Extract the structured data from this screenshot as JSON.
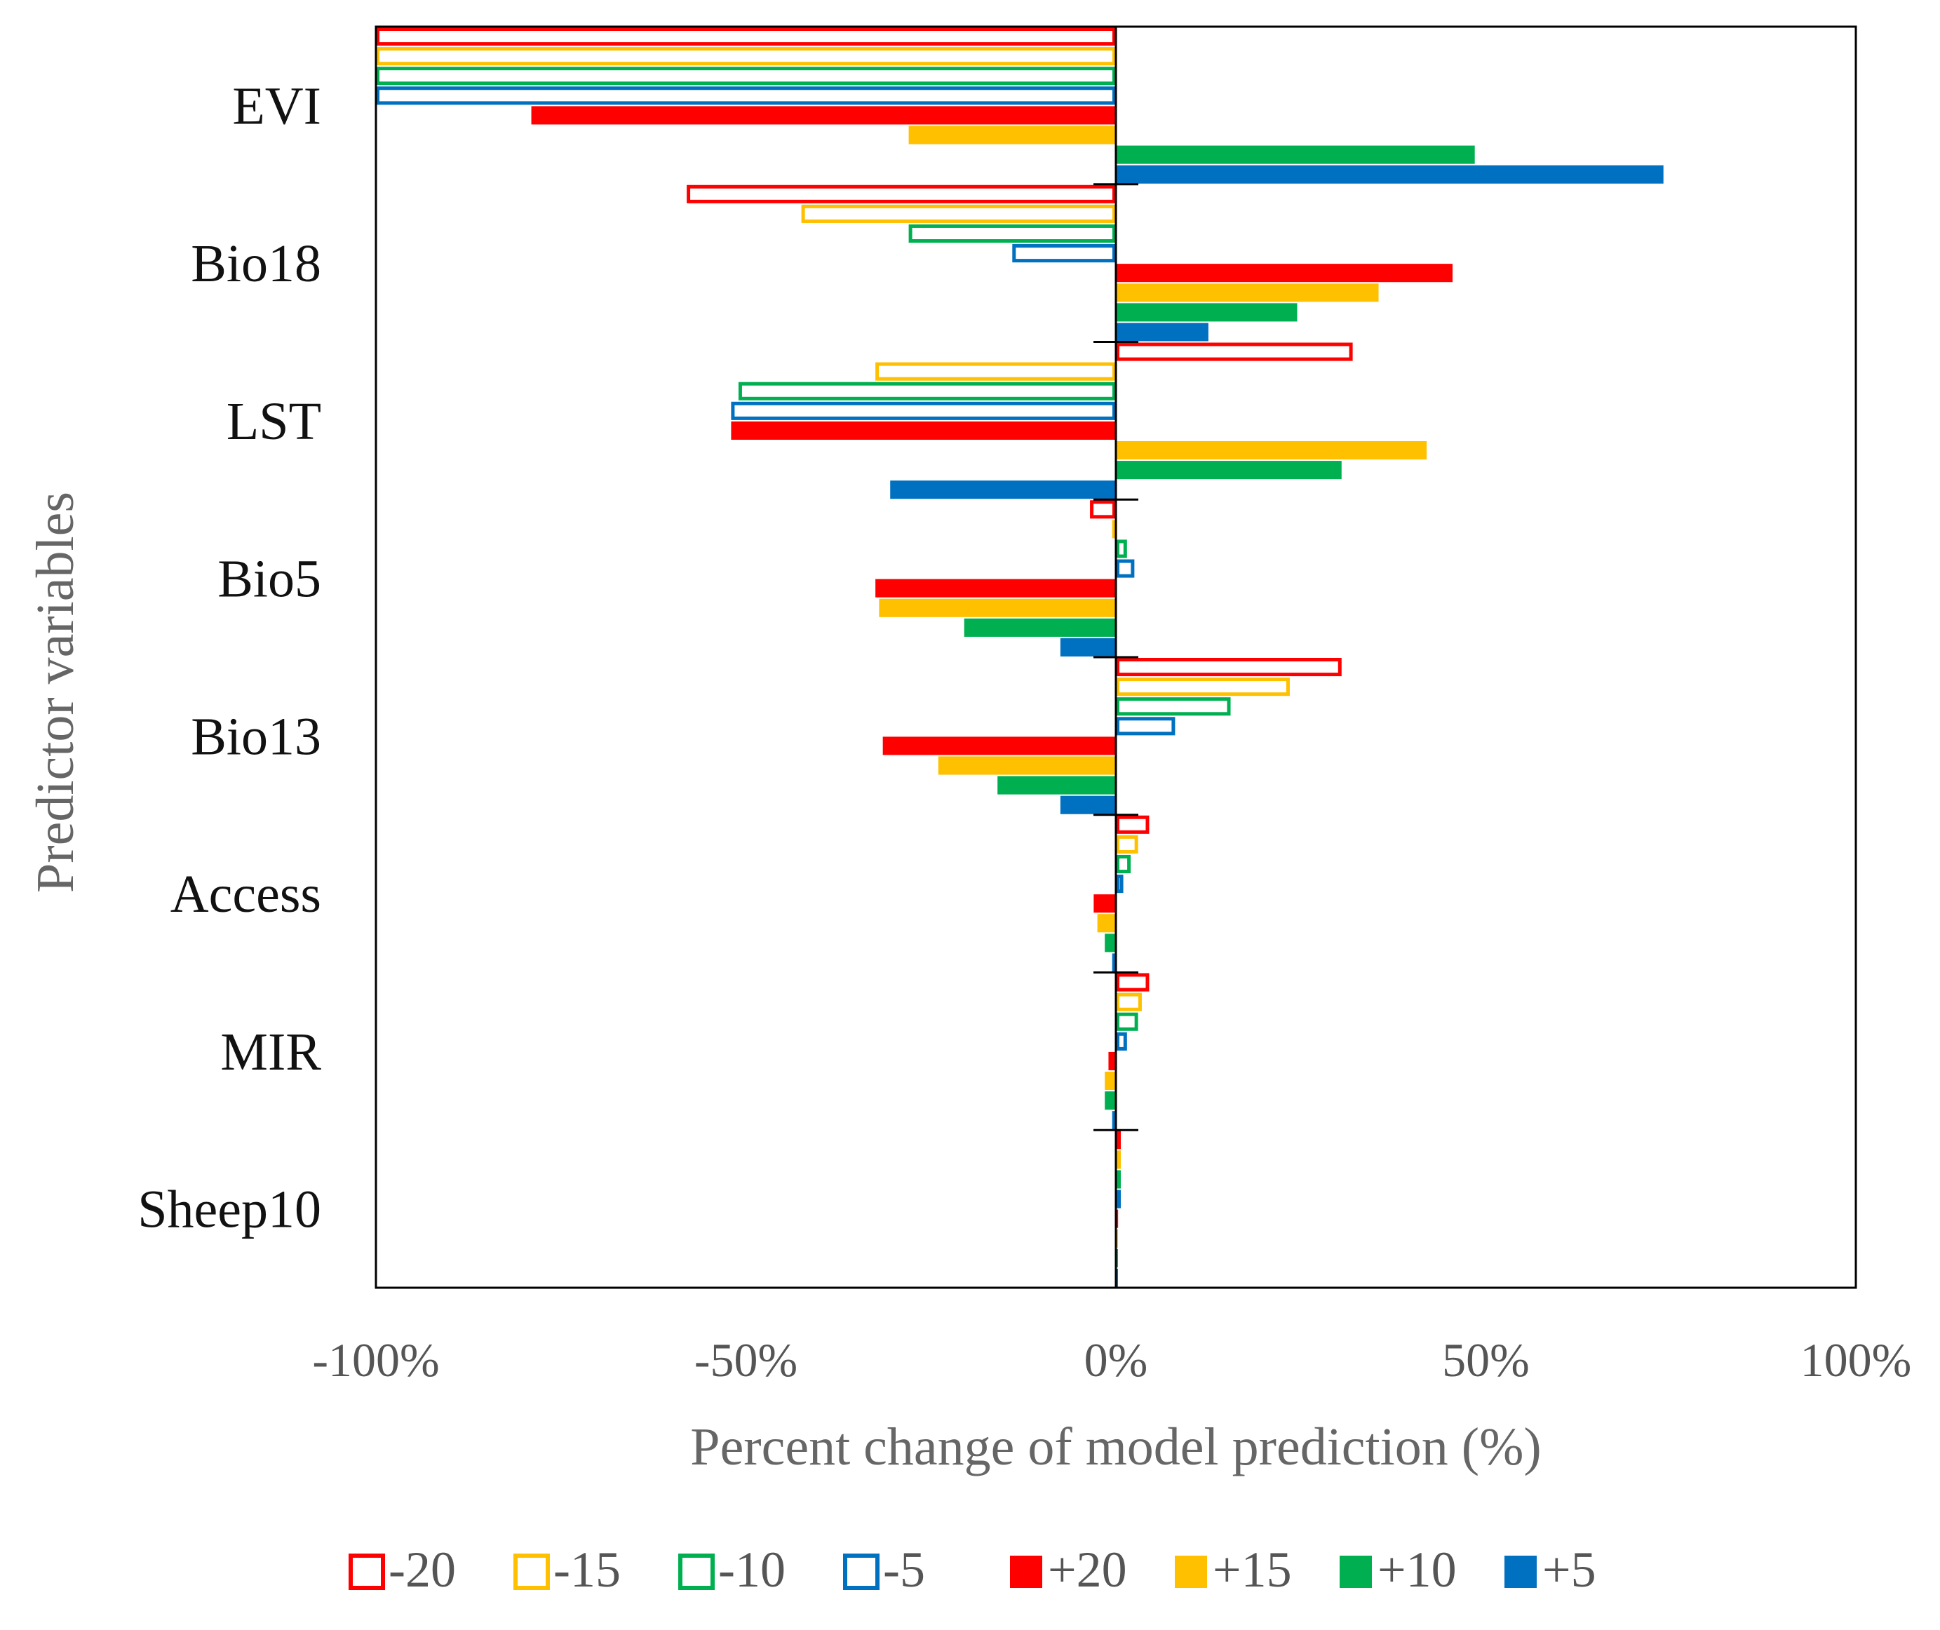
{
  "chart_data": {
    "type": "bar",
    "orientation": "horizontal",
    "title": "",
    "xlabel": "Percent change of model prediction (%)",
    "ylabel": "Predictor variables",
    "xlim": [
      -100,
      100
    ],
    "x_ticks": [
      -100,
      -50,
      0,
      50,
      100
    ],
    "x_tick_labels": [
      "-100%",
      "-50%",
      "0%",
      "50%",
      "100%"
    ],
    "categories": [
      "EVI",
      "Bio18",
      "LST",
      "Bio5",
      "Bio13",
      "Access",
      "MIR",
      "Sheep10"
    ],
    "series": [
      {
        "name": "-20",
        "style": "hollow",
        "color": "#FF0000",
        "values": [
          -100,
          -58,
          32,
          -3.5,
          30.5,
          4.5,
          4.5,
          0.3
        ]
      },
      {
        "name": "-15",
        "style": "hollow",
        "color": "#FFC000",
        "values": [
          -100,
          -42.5,
          -32.5,
          -0.5,
          23.5,
          3,
          3.5,
          0.2
        ]
      },
      {
        "name": "-10",
        "style": "hollow",
        "color": "#00B050",
        "values": [
          -100,
          -28,
          -51,
          1.5,
          15.5,
          2,
          3,
          0.2
        ]
      },
      {
        "name": "-5",
        "style": "hollow",
        "color": "#0070C0",
        "values": [
          -100,
          -14,
          -52,
          2.5,
          8,
          1,
          1.5,
          0.1
        ]
      },
      {
        "name": "+20",
        "style": "filled",
        "color": "#FF0000",
        "values": [
          -79,
          45.5,
          -52,
          -32.5,
          -31.5,
          -3,
          -1,
          0.3
        ]
      },
      {
        "name": "+15",
        "style": "filled",
        "color": "#FFC000",
        "values": [
          -28,
          35.5,
          42,
          -32,
          -24,
          -2.5,
          -1.5,
          0.2
        ]
      },
      {
        "name": "+10",
        "style": "filled",
        "color": "#00B050",
        "values": [
          48.5,
          24.5,
          30.5,
          -20.5,
          -16,
          -1.5,
          -1.5,
          0.2
        ]
      },
      {
        "name": "+5",
        "style": "filled",
        "color": "#0070C0",
        "values": [
          74,
          12.5,
          -30.5,
          -7.5,
          -7.5,
          -0.5,
          -0.5,
          0.1
        ]
      }
    ],
    "legend": [
      "-20",
      "-15",
      "-10",
      "-5",
      "+20",
      "+15",
      "+10",
      "+5"
    ],
    "legend_position": "bottom",
    "grid": false
  }
}
